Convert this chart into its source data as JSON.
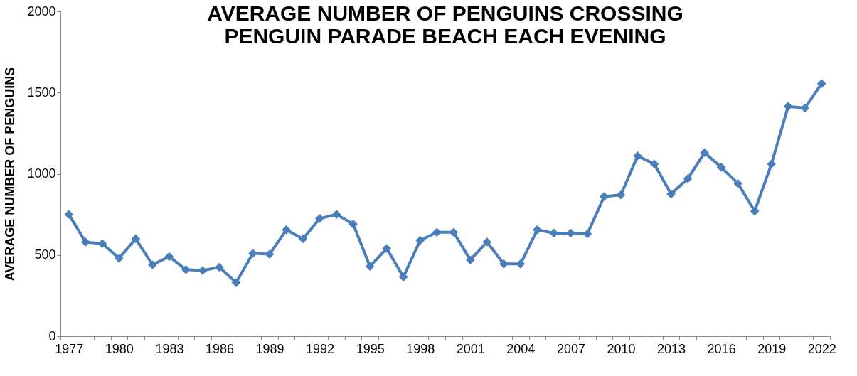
{
  "chart_data": {
    "type": "line",
    "title": "AVERAGE NUMBER OF PENGUINS CROSSING\nPENGUIN PARADE BEACH EACH EVENING",
    "ylabel": "AVERAGE NUMBER OF PENGUINS",
    "categories": [
      "1977",
      null,
      null,
      "1980",
      null,
      null,
      "1983",
      null,
      null,
      "1986",
      null,
      null,
      "1989",
      null,
      null,
      "1992",
      null,
      null,
      "1995",
      null,
      null,
      "1998",
      null,
      null,
      "2001",
      null,
      null,
      "2004",
      null,
      null,
      "2007",
      null,
      null,
      "2010",
      null,
      null,
      "2013",
      null,
      null,
      "2016",
      null,
      null,
      "2019",
      null,
      null,
      "2022"
    ],
    "series": [
      {
        "color": "#4a7ebb",
        "values": [
          750,
          580,
          570,
          480,
          600,
          440,
          490,
          410,
          405,
          425,
          330,
          510,
          505,
          655,
          600,
          725,
          750,
          690,
          430,
          540,
          365,
          590,
          640,
          640,
          470,
          580,
          445,
          445,
          655,
          635,
          635,
          630,
          860,
          870,
          1110,
          1060,
          875,
          970,
          1130,
          1040,
          940,
          770,
          1060,
          1415,
          1405,
          1555
        ]
      }
    ],
    "ylim": [
      0,
      2000
    ],
    "yticks": [
      0,
      500,
      1000,
      1500,
      2000
    ],
    "grid": false,
    "marker": "diamond",
    "line_style": "solid"
  }
}
